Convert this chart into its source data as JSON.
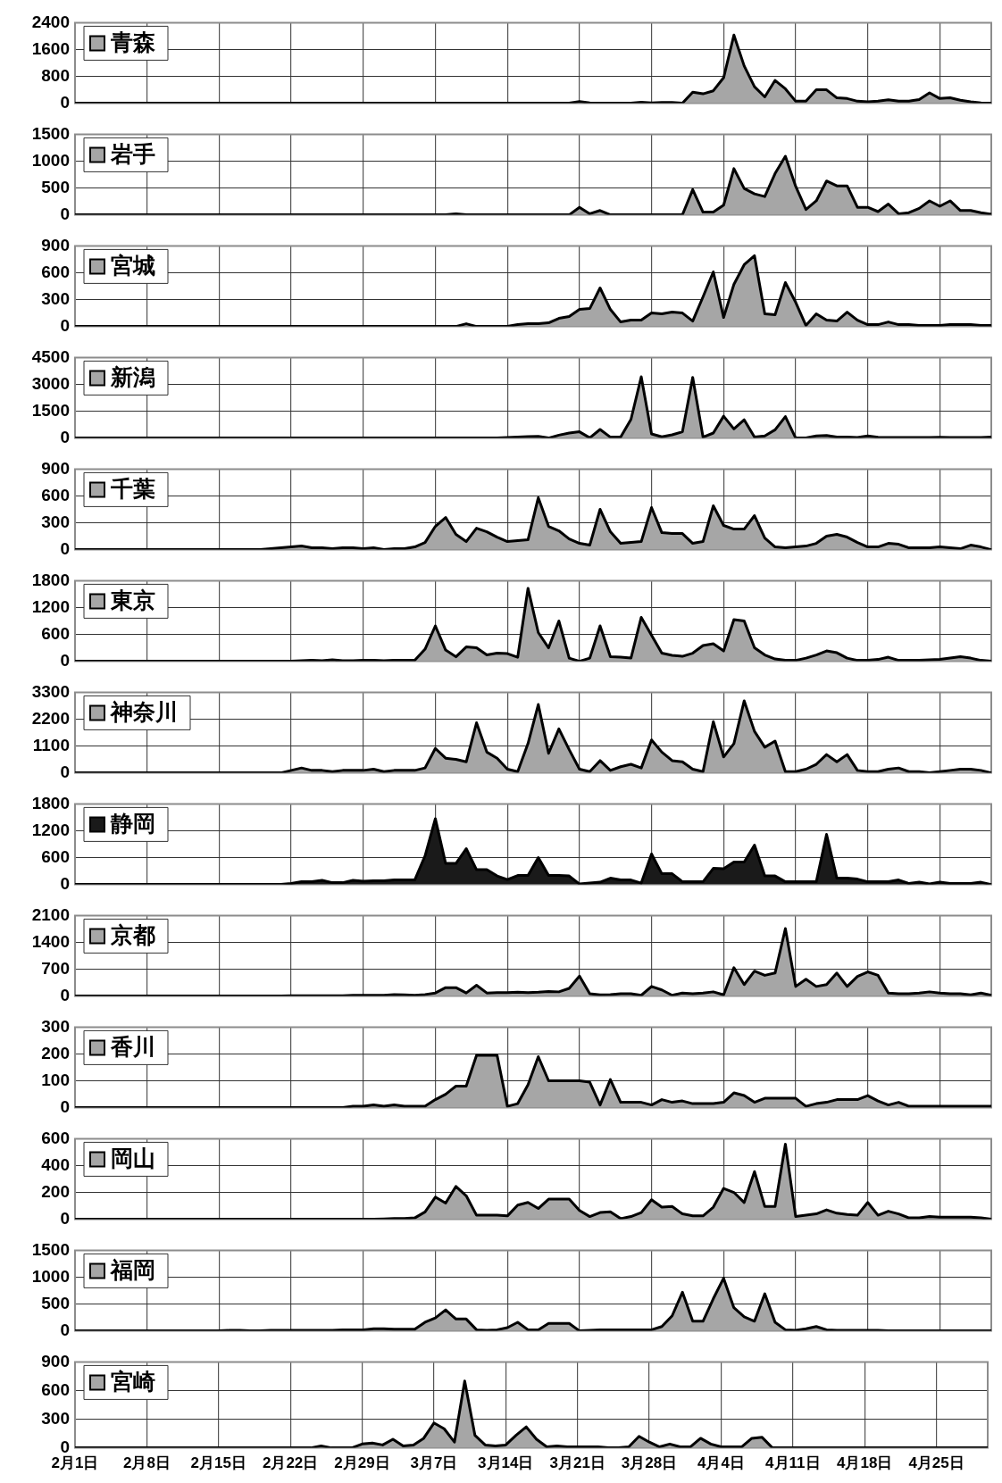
{
  "chart_data": [
    {
      "type": "area",
      "ylim": [
        0,
        2400
      ],
      "yticks": [
        0,
        800,
        1600,
        2400
      ],
      "grid": true,
      "legend": "top left",
      "marker": "none",
      "tick_labels": "y",
      "series": [
        {
          "name": "青森",
          "color": "#a6a6a6",
          "values": [
            0,
            0,
            0,
            0,
            0,
            0,
            0,
            0,
            0,
            0,
            0,
            0,
            0,
            0,
            0,
            0,
            0,
            0,
            0,
            0,
            0,
            0,
            0,
            0,
            0,
            0,
            0,
            0,
            0,
            0,
            0,
            0,
            0,
            0,
            0,
            0,
            0,
            0,
            0,
            0,
            0,
            0,
            0,
            0,
            0,
            0,
            0,
            0,
            0,
            50,
            10,
            0,
            0,
            0,
            0,
            30,
            10,
            20,
            20,
            0,
            330,
            280,
            370,
            760,
            2030,
            1110,
            490,
            190,
            680,
            430,
            60,
            60,
            400,
            400,
            160,
            140,
            60,
            40,
            60,
            100,
            60,
            60,
            110,
            310,
            140,
            160,
            90,
            40,
            10,
            0
          ]
        }
      ]
    },
    {
      "type": "area",
      "ylim": [
        0,
        1500
      ],
      "yticks": [
        0,
        500,
        1000,
        1500
      ],
      "grid": true,
      "legend": "top left",
      "marker": "none",
      "tick_labels": "y",
      "series": [
        {
          "name": "岩手",
          "color": "#a6a6a6",
          "values": [
            0,
            0,
            0,
            0,
            0,
            0,
            0,
            0,
            0,
            0,
            0,
            0,
            0,
            0,
            0,
            0,
            0,
            0,
            0,
            0,
            0,
            0,
            0,
            0,
            0,
            0,
            0,
            0,
            0,
            0,
            0,
            0,
            0,
            0,
            0,
            0,
            0,
            20,
            0,
            0,
            0,
            0,
            0,
            0,
            0,
            0,
            0,
            0,
            0,
            140,
            20,
            80,
            0,
            0,
            0,
            0,
            0,
            0,
            0,
            0,
            470,
            50,
            50,
            180,
            860,
            490,
            390,
            340,
            770,
            1090,
            530,
            100,
            260,
            630,
            540,
            540,
            140,
            140,
            60,
            200,
            20,
            40,
            120,
            260,
            160,
            260,
            80,
            80,
            40,
            10
          ]
        }
      ]
    },
    {
      "type": "area",
      "ylim": [
        0,
        900
      ],
      "yticks": [
        0,
        300,
        600,
        900
      ],
      "grid": true,
      "legend": "top left",
      "marker": "none",
      "tick_labels": "y",
      "series": [
        {
          "name": "宮城",
          "color": "#a6a6a6",
          "values": [
            0,
            0,
            0,
            0,
            0,
            0,
            0,
            0,
            0,
            0,
            0,
            0,
            0,
            0,
            0,
            0,
            0,
            0,
            0,
            0,
            0,
            0,
            0,
            0,
            0,
            0,
            0,
            0,
            0,
            0,
            0,
            0,
            0,
            0,
            0,
            0,
            0,
            0,
            30,
            0,
            0,
            0,
            0,
            20,
            30,
            30,
            40,
            90,
            110,
            190,
            200,
            430,
            190,
            50,
            70,
            70,
            150,
            140,
            160,
            150,
            60,
            330,
            610,
            100,
            470,
            690,
            790,
            140,
            130,
            490,
            270,
            10,
            140,
            70,
            60,
            160,
            70,
            20,
            20,
            50,
            20,
            20,
            10,
            10,
            10,
            20,
            20,
            20,
            10,
            10
          ]
        }
      ]
    },
    {
      "type": "area",
      "ylim": [
        0,
        4500
      ],
      "yticks": [
        0,
        1500,
        3000,
        4500
      ],
      "grid": true,
      "legend": "top left",
      "marker": "none",
      "tick_labels": "y",
      "series": [
        {
          "name": "新潟",
          "color": "#a6a6a6",
          "values": [
            0,
            0,
            0,
            0,
            0,
            0,
            0,
            0,
            0,
            0,
            0,
            0,
            0,
            0,
            0,
            0,
            0,
            0,
            0,
            0,
            0,
            0,
            0,
            0,
            0,
            0,
            0,
            0,
            0,
            0,
            0,
            0,
            0,
            0,
            0,
            0,
            0,
            0,
            0,
            0,
            0,
            0,
            30,
            60,
            80,
            90,
            0,
            160,
            280,
            350,
            10,
            480,
            50,
            50,
            1040,
            3420,
            230,
            70,
            180,
            350,
            3390,
            50,
            280,
            1220,
            510,
            1020,
            50,
            120,
            460,
            1200,
            0,
            10,
            120,
            140,
            50,
            50,
            30,
            120,
            40,
            30,
            30,
            30,
            30,
            30,
            40,
            30,
            30,
            30,
            30,
            50
          ]
        }
      ]
    },
    {
      "type": "area",
      "ylim": [
        0,
        900
      ],
      "yticks": [
        0,
        300,
        600,
        900
      ],
      "grid": true,
      "legend": "top left",
      "marker": "none",
      "tick_labels": "y",
      "series": [
        {
          "name": "千葉",
          "color": "#a6a6a6",
          "values": [
            0,
            0,
            0,
            0,
            0,
            0,
            0,
            0,
            0,
            0,
            0,
            0,
            0,
            0,
            0,
            0,
            0,
            0,
            0,
            10,
            20,
            30,
            40,
            20,
            20,
            10,
            20,
            20,
            10,
            20,
            0,
            10,
            10,
            30,
            80,
            260,
            360,
            170,
            90,
            240,
            200,
            140,
            90,
            100,
            110,
            580,
            260,
            210,
            120,
            70,
            50,
            450,
            200,
            70,
            80,
            90,
            470,
            190,
            180,
            180,
            70,
            90,
            490,
            270,
            230,
            230,
            380,
            130,
            30,
            20,
            30,
            40,
            70,
            150,
            170,
            140,
            80,
            30,
            30,
            70,
            60,
            20,
            20,
            20,
            30,
            20,
            10,
            50,
            30,
            0
          ]
        }
      ]
    },
    {
      "type": "area",
      "ylim": [
        0,
        1800
      ],
      "yticks": [
        0,
        600,
        1200,
        1800
      ],
      "grid": true,
      "legend": "top left",
      "marker": "none",
      "tick_labels": "y",
      "series": [
        {
          "name": "東京",
          "color": "#a6a6a6",
          "values": [
            0,
            0,
            0,
            0,
            0,
            0,
            0,
            0,
            0,
            0,
            0,
            0,
            0,
            0,
            0,
            0,
            0,
            0,
            0,
            0,
            0,
            0,
            10,
            20,
            10,
            30,
            10,
            10,
            20,
            20,
            10,
            20,
            20,
            20,
            270,
            790,
            250,
            100,
            320,
            300,
            140,
            180,
            170,
            90,
            1630,
            640,
            300,
            900,
            70,
            0,
            70,
            790,
            100,
            90,
            70,
            980,
            580,
            180,
            130,
            110,
            180,
            350,
            390,
            230,
            930,
            900,
            300,
            140,
            50,
            20,
            20,
            70,
            140,
            230,
            190,
            70,
            20,
            20,
            40,
            90,
            20,
            20,
            20,
            30,
            40,
            70,
            100,
            70,
            20,
            0
          ]
        }
      ]
    },
    {
      "type": "area",
      "ylim": [
        0,
        3300
      ],
      "yticks": [
        0,
        1100,
        2200,
        3300
      ],
      "grid": true,
      "legend": "top left",
      "marker": "none",
      "tick_labels": "y",
      "series": [
        {
          "name": "神奈川",
          "color": "#a6a6a6",
          "values": [
            0,
            0,
            0,
            0,
            0,
            0,
            0,
            0,
            0,
            0,
            0,
            0,
            0,
            0,
            0,
            0,
            0,
            0,
            0,
            0,
            0,
            100,
            200,
            100,
            100,
            50,
            100,
            100,
            100,
            150,
            50,
            100,
            100,
            100,
            200,
            1000,
            600,
            550,
            450,
            2050,
            850,
            600,
            150,
            50,
            1200,
            2800,
            800,
            1800,
            950,
            150,
            50,
            500,
            100,
            250,
            350,
            200,
            1350,
            850,
            500,
            450,
            150,
            50,
            2100,
            650,
            1200,
            2950,
            1700,
            1050,
            1300,
            50,
            50,
            150,
            350,
            750,
            450,
            750,
            100,
            50,
            50,
            150,
            200,
            50,
            50,
            0,
            50,
            100,
            150,
            150,
            100,
            0
          ]
        }
      ]
    },
    {
      "type": "area",
      "ylim": [
        0,
        1800
      ],
      "yticks": [
        0,
        600,
        1200,
        1800
      ],
      "grid": true,
      "legend": "top left",
      "marker": "none",
      "tick_labels": "y",
      "series": [
        {
          "name": "静岡",
          "color": "#1a1a1a",
          "values": [
            0,
            0,
            0,
            0,
            0,
            0,
            0,
            0,
            0,
            0,
            0,
            0,
            0,
            0,
            0,
            0,
            0,
            0,
            0,
            0,
            0,
            20,
            60,
            60,
            90,
            40,
            40,
            90,
            70,
            80,
            80,
            100,
            100,
            100,
            640,
            1470,
            470,
            470,
            800,
            330,
            330,
            190,
            110,
            200,
            200,
            600,
            200,
            200,
            190,
            10,
            30,
            50,
            140,
            100,
            100,
            30,
            680,
            240,
            240,
            60,
            60,
            60,
            360,
            350,
            500,
            500,
            880,
            190,
            190,
            60,
            60,
            60,
            60,
            1120,
            140,
            140,
            120,
            60,
            60,
            60,
            100,
            20,
            50,
            10,
            50,
            20,
            20,
            20,
            50,
            0
          ]
        }
      ]
    },
    {
      "type": "area",
      "ylim": [
        0,
        2100
      ],
      "yticks": [
        0,
        700,
        1400,
        2100
      ],
      "grid": true,
      "legend": "top left",
      "marker": "none",
      "tick_labels": "y",
      "series": [
        {
          "name": "京都",
          "color": "#a6a6a6",
          "values": [
            0,
            0,
            0,
            0,
            0,
            0,
            0,
            0,
            0,
            0,
            0,
            0,
            0,
            0,
            0,
            0,
            0,
            0,
            0,
            0,
            0,
            10,
            10,
            10,
            10,
            10,
            10,
            20,
            20,
            20,
            20,
            40,
            30,
            20,
            40,
            80,
            220,
            220,
            80,
            280,
            80,
            90,
            90,
            100,
            90,
            100,
            120,
            110,
            200,
            520,
            60,
            30,
            40,
            60,
            60,
            20,
            250,
            160,
            20,
            80,
            60,
            80,
            110,
            30,
            740,
            300,
            650,
            540,
            600,
            1760,
            250,
            440,
            250,
            300,
            600,
            250,
            510,
            630,
            540,
            80,
            60,
            60,
            80,
            110,
            80,
            60,
            60,
            30,
            80,
            20
          ]
        }
      ]
    },
    {
      "type": "area",
      "ylim": [
        0,
        300
      ],
      "yticks": [
        0,
        100,
        200,
        300
      ],
      "grid": true,
      "legend": "top left",
      "marker": "none",
      "tick_labels": "y",
      "series": [
        {
          "name": "香川",
          "color": "#a6a6a6",
          "values": [
            0,
            0,
            0,
            0,
            0,
            0,
            0,
            0,
            0,
            0,
            0,
            0,
            0,
            0,
            0,
            0,
            0,
            0,
            0,
            0,
            0,
            0,
            0,
            0,
            0,
            0,
            0,
            5,
            5,
            10,
            5,
            10,
            5,
            5,
            5,
            30,
            50,
            80,
            80,
            195,
            195,
            195,
            5,
            15,
            85,
            190,
            100,
            100,
            100,
            100,
            95,
            10,
            105,
            20,
            20,
            20,
            10,
            30,
            20,
            25,
            15,
            15,
            15,
            20,
            55,
            45,
            20,
            35,
            35,
            35,
            35,
            5,
            15,
            20,
            30,
            30,
            30,
            45,
            25,
            10,
            20,
            5,
            5,
            5,
            5,
            5,
            5,
            5,
            5,
            5
          ]
        }
      ]
    },
    {
      "type": "area",
      "ylim": [
        0,
        600
      ],
      "yticks": [
        0,
        200,
        400,
        600
      ],
      "grid": true,
      "legend": "top left",
      "marker": "none",
      "tick_labels": "y",
      "series": [
        {
          "name": "岡山",
          "color": "#a6a6a6",
          "values": [
            0,
            0,
            0,
            0,
            0,
            0,
            0,
            0,
            0,
            0,
            0,
            0,
            0,
            0,
            0,
            0,
            0,
            0,
            0,
            0,
            0,
            0,
            0,
            0,
            0,
            0,
            0,
            0,
            0,
            0,
            3,
            5,
            5,
            10,
            55,
            165,
            120,
            245,
            175,
            30,
            30,
            30,
            25,
            105,
            125,
            80,
            150,
            150,
            150,
            65,
            20,
            50,
            55,
            5,
            20,
            50,
            145,
            90,
            95,
            40,
            25,
            25,
            90,
            230,
            200,
            125,
            355,
            95,
            95,
            560,
            20,
            30,
            40,
            70,
            45,
            35,
            30,
            125,
            30,
            60,
            40,
            10,
            10,
            20,
            15,
            15,
            15,
            15,
            10,
            0
          ]
        }
      ]
    },
    {
      "type": "area",
      "ylim": [
        0,
        1500
      ],
      "yticks": [
        0,
        500,
        1000,
        1500
      ],
      "grid": true,
      "legend": "top left",
      "marker": "none",
      "tick_labels": "y",
      "series": [
        {
          "name": "福岡",
          "color": "#a6a6a6",
          "values": [
            0,
            0,
            0,
            0,
            0,
            0,
            0,
            0,
            0,
            0,
            0,
            0,
            0,
            0,
            0,
            10,
            10,
            0,
            0,
            10,
            10,
            10,
            10,
            10,
            10,
            10,
            20,
            20,
            20,
            40,
            40,
            30,
            30,
            30,
            160,
            240,
            390,
            220,
            220,
            20,
            10,
            20,
            60,
            160,
            20,
            20,
            140,
            140,
            140,
            0,
            10,
            20,
            20,
            20,
            20,
            20,
            20,
            80,
            280,
            720,
            180,
            180,
            600,
            980,
            430,
            260,
            180,
            690,
            160,
            20,
            10,
            40,
            80,
            20,
            10,
            10,
            10,
            10,
            10,
            0,
            0,
            0,
            0,
            0,
            0,
            0,
            0,
            0,
            0,
            0
          ]
        }
      ]
    },
    {
      "type": "area",
      "categories": [
        "2月1日",
        null,
        null,
        null,
        null,
        null,
        null,
        "2月8日",
        null,
        null,
        null,
        null,
        null,
        null,
        "2月15日",
        null,
        null,
        null,
        null,
        null,
        null,
        "2月22日",
        null,
        null,
        null,
        null,
        null,
        null,
        "2月29日",
        null,
        null,
        null,
        null,
        null,
        null,
        "3月7日",
        null,
        null,
        null,
        null,
        null,
        null,
        "3月14日",
        null,
        null,
        null,
        null,
        null,
        null,
        "3月21日",
        null,
        null,
        null,
        null,
        null,
        null,
        "3月28日",
        null,
        null,
        null,
        null,
        null,
        null,
        "4月4日",
        null,
        null,
        null,
        null,
        null,
        null,
        "4月11日",
        null,
        null,
        null,
        null,
        null,
        null,
        "4月18日",
        null,
        null,
        null,
        null,
        null,
        null,
        "4月25日",
        null,
        null,
        null,
        null,
        null
      ],
      "ylim": [
        0,
        900
      ],
      "yticks": [
        0,
        300,
        600,
        900
      ],
      "grid": true,
      "legend": "top left",
      "marker": "none",
      "series": [
        {
          "name": "宮崎",
          "color": "#a6a6a6",
          "values": [
            0,
            0,
            0,
            0,
            0,
            0,
            0,
            0,
            0,
            0,
            0,
            0,
            0,
            0,
            0,
            0,
            0,
            0,
            0,
            0,
            0,
            0,
            0,
            0,
            20,
            0,
            0,
            0,
            40,
            50,
            30,
            90,
            20,
            30,
            100,
            260,
            200,
            60,
            700,
            130,
            30,
            20,
            30,
            130,
            220,
            90,
            10,
            20,
            10,
            10,
            10,
            10,
            0,
            0,
            10,
            120,
            60,
            10,
            40,
            10,
            10,
            100,
            40,
            10,
            10,
            10,
            100,
            110,
            0,
            0,
            0,
            0,
            0,
            0,
            0,
            0,
            0,
            0,
            0,
            0,
            0,
            0,
            0,
            0,
            0,
            0,
            0,
            0,
            0,
            0
          ]
        }
      ]
    }
  ]
}
